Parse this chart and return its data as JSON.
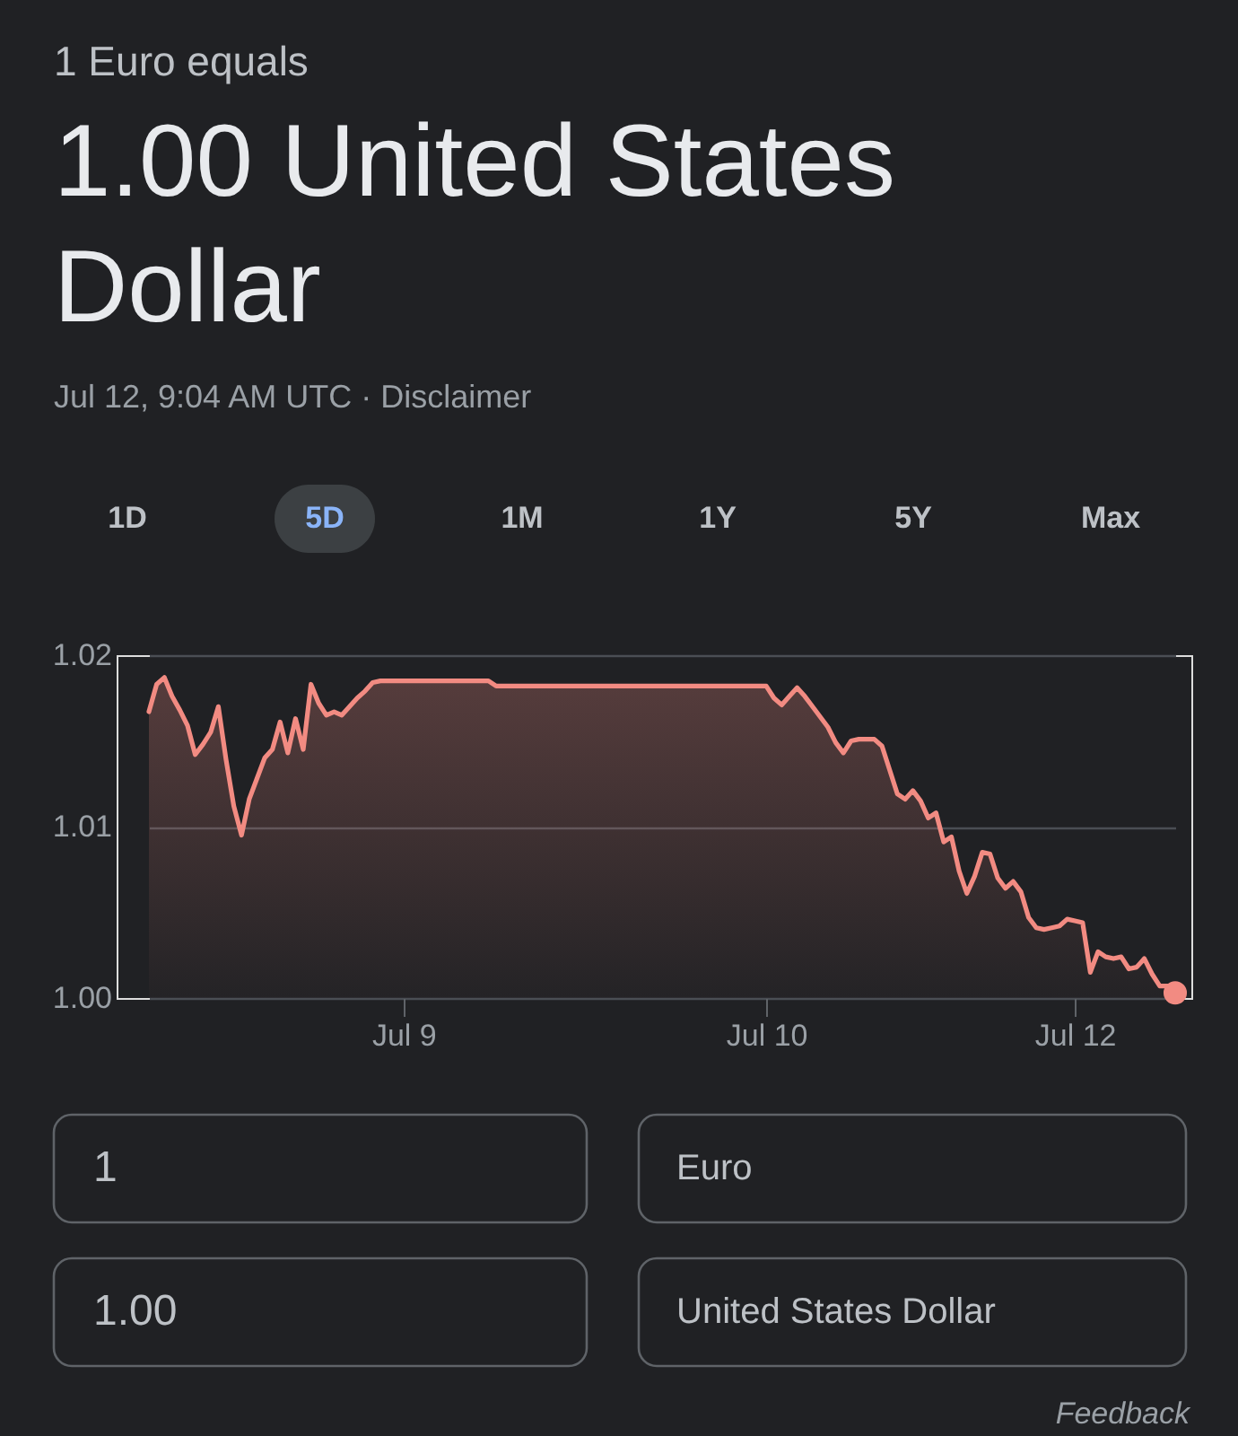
{
  "chart_data": {
    "type": "area",
    "title": "1 Euro equals",
    "subtitle": "1.00 United States Dollar",
    "annotations": [
      "Jul 12, 9:04 AM UTC · Disclaimer",
      "1D",
      "5D",
      "1M",
      "1Y",
      "5Y",
      "Max",
      "1",
      "Euro",
      "1.00",
      "United States Dollar",
      "Feedback"
    ],
    "categories": [
      null,
      null,
      null,
      null,
      null,
      null,
      null,
      null,
      null,
      null,
      null,
      null,
      null,
      null,
      null,
      null,
      null,
      null,
      null,
      null,
      null,
      null,
      null,
      null,
      null,
      null,
      null,
      null,
      null,
      null,
      null,
      null,
      null,
      "Jul 9",
      null,
      null,
      null,
      null,
      null,
      null,
      null,
      null,
      null,
      null,
      null,
      null,
      null,
      null,
      null,
      null,
      null,
      null,
      null,
      null,
      null,
      null,
      null,
      null,
      null,
      null,
      null,
      null,
      null,
      null,
      null,
      null,
      null,
      null,
      null,
      null,
      null,
      null,
      null,
      null,
      null,
      null,
      null,
      null,
      null,
      null,
      "Jul 10",
      null,
      null,
      null,
      null,
      null,
      null,
      null,
      null,
      null,
      null,
      null,
      null,
      null,
      null,
      null,
      null,
      null,
      null,
      null,
      null,
      null,
      null,
      null,
      null,
      null,
      null,
      null,
      null,
      null,
      null,
      null,
      null,
      null,
      null,
      null,
      null,
      null,
      null,
      null,
      "Jul 12",
      null,
      null,
      null,
      null,
      null,
      null,
      null,
      null,
      null,
      null,
      null,
      null,
      null
    ],
    "series": [
      {
        "color": "#f28b82",
        "values": [
          1.0167,
          1.0183,
          1.0187,
          1.0176,
          1.0168,
          1.0159,
          1.0142,
          1.0148,
          1.0155,
          1.017,
          1.0139,
          1.0112,
          1.0095,
          1.0116,
          1.0128,
          1.014,
          1.0145,
          1.0161,
          1.0143,
          1.0163,
          1.0145,
          1.0183,
          1.0172,
          1.0165,
          1.0167,
          1.0165,
          1.017,
          1.0175,
          1.0179,
          1.0184,
          1.0185,
          1.0185,
          1.0185,
          1.0185,
          1.0185,
          1.0185,
          1.0185,
          1.0185,
          1.0185,
          1.0185,
          1.0185,
          1.0185,
          1.0185,
          1.0185,
          1.0185,
          1.0182,
          1.0182,
          1.0182,
          1.0182,
          1.0182,
          1.0182,
          1.0182,
          1.0182,
          1.0182,
          1.0182,
          1.0182,
          1.0182,
          1.0182,
          1.0182,
          1.0182,
          1.0182,
          1.0182,
          1.0182,
          1.0182,
          1.0182,
          1.0182,
          1.0182,
          1.0182,
          1.0182,
          1.0182,
          1.0182,
          1.0182,
          1.0182,
          1.0182,
          1.0182,
          1.0182,
          1.0182,
          1.0182,
          1.0182,
          1.0182,
          1.0182,
          1.0175,
          1.0171,
          1.0176,
          1.0181,
          1.0176,
          1.017,
          1.0164,
          1.0158,
          1.0149,
          1.0143,
          1.015,
          1.0151,
          1.0151,
          1.0151,
          1.0147,
          1.0133,
          1.0119,
          1.0116,
          1.0121,
          1.0115,
          1.0105,
          1.0108,
          1.0091,
          1.0094,
          1.0074,
          1.0061,
          1.0071,
          1.0085,
          1.0084,
          1.007,
          1.0064,
          1.0068,
          1.0062,
          1.0047,
          1.0041,
          1.004,
          1.0041,
          1.0042,
          1.0046,
          1.0045,
          1.0044,
          1.0015,
          1.0027,
          1.0024,
          1.0023,
          1.0024,
          1.0017,
          1.0018,
          1.0023,
          1.0014,
          1.0007,
          1.0007,
          1.0003
        ]
      },
      {
        "type": "scatter",
        "color": "#f28b82",
        "values": [
          null,
          null,
          null,
          null,
          null,
          null,
          null,
          null,
          null,
          null,
          null,
          null,
          null,
          null,
          null,
          null,
          null,
          null,
          null,
          null,
          null,
          null,
          null,
          null,
          null,
          null,
          null,
          null,
          null,
          null,
          null,
          null,
          null,
          null,
          null,
          null,
          null,
          null,
          null,
          null,
          null,
          null,
          null,
          null,
          null,
          null,
          null,
          null,
          null,
          null,
          null,
          null,
          null,
          null,
          null,
          null,
          null,
          null,
          null,
          null,
          null,
          null,
          null,
          null,
          null,
          null,
          null,
          null,
          null,
          null,
          null,
          null,
          null,
          null,
          null,
          null,
          null,
          null,
          null,
          null,
          null,
          null,
          null,
          null,
          null,
          null,
          null,
          null,
          null,
          null,
          null,
          null,
          null,
          null,
          null,
          null,
          null,
          null,
          null,
          null,
          null,
          null,
          null,
          null,
          null,
          null,
          null,
          null,
          null,
          null,
          null,
          null,
          null,
          null,
          null,
          null,
          null,
          null,
          null,
          null,
          null,
          null,
          null,
          null,
          null,
          null,
          null,
          null,
          null,
          null,
          null,
          null,
          null,
          1.0003
        ]
      }
    ],
    "ylim": [
      1.0,
      1.02
    ],
    "yticks": [
      {
        "value": 1.0,
        "label": "1.00"
      },
      1.01,
      1.02
    ],
    "grid": "y"
  }
}
